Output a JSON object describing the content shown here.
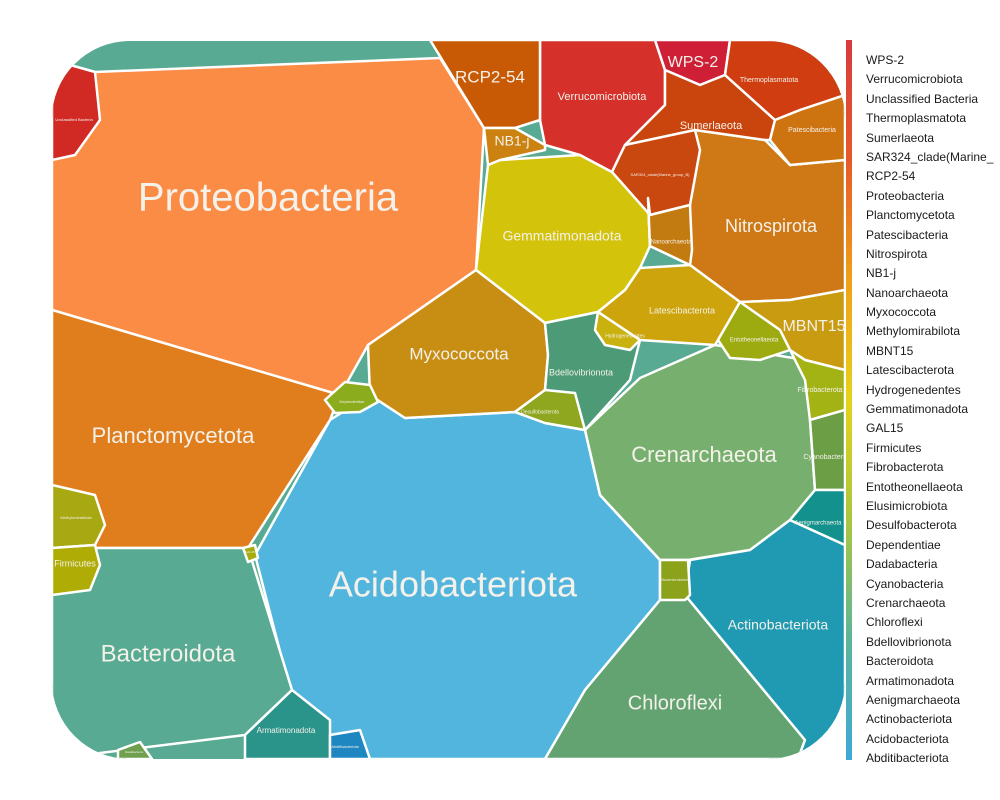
{
  "chart_data": {
    "type": "voronoi-treemap",
    "title": "",
    "cells": [
      {
        "name": "Proteobacteria",
        "color": "#fb8c45"
      },
      {
        "name": "Acidobacteriota",
        "color": "#52b5dd"
      },
      {
        "name": "Planctomycetota",
        "color": "#e07e1e"
      },
      {
        "name": "Bacteroidota",
        "color": "#58aa92"
      },
      {
        "name": "Crenarchaeota",
        "color": "#77b06e"
      },
      {
        "name": "Chloroflexi",
        "color": "#63a371"
      },
      {
        "name": "Actinobacteriota",
        "color": "#1f9ab2"
      },
      {
        "name": "Gemmatimonadota",
        "color": "#d4c30b"
      },
      {
        "name": "Myxococcota",
        "color": "#c88e14"
      },
      {
        "name": "Nitrospirota",
        "color": "#cf7916"
      },
      {
        "name": "Verrucomicrobiota",
        "color": "#d5302a"
      },
      {
        "name": "RCP2-54",
        "color": "#c85a06"
      },
      {
        "name": "WPS-2",
        "color": "#cf1f37"
      },
      {
        "name": "Sumerlaeota",
        "color": "#c9450d"
      },
      {
        "name": "Thermoplasmatota",
        "color": "#cf3d10"
      },
      {
        "name": "Patescibacteria",
        "color": "#cd7411"
      },
      {
        "name": "NB1-j",
        "color": "#cc8211"
      },
      {
        "name": "Bdellovibrionota",
        "color": "#4d9a76"
      },
      {
        "name": "Latescibacterota",
        "color": "#cda40b"
      },
      {
        "name": "MBNT15",
        "color": "#c99b10"
      },
      {
        "name": "Unclassified Bacteria",
        "color": "#d12a25"
      },
      {
        "name": "SAR324_clade(Marine_group_B)",
        "color": "#c94810"
      },
      {
        "name": "Nanoarchaeota",
        "color": "#c27b10"
      },
      {
        "name": "Hydrogenedentes",
        "color": "#c9b10f"
      },
      {
        "name": "Entotheonellaeota",
        "color": "#9eab10"
      },
      {
        "name": "Fibrobacterota",
        "color": "#a3b313"
      },
      {
        "name": "Cyanobacteria",
        "color": "#6c9e46"
      },
      {
        "name": "Aenigmarchaeota",
        "color": "#13928d"
      },
      {
        "name": "Dependentiae",
        "color": "#8bac1c"
      },
      {
        "name": "Desulfobacterota",
        "color": "#8ea71e"
      },
      {
        "name": "Methylomirabilota",
        "color": "#a7a812"
      },
      {
        "name": "Firmicutes",
        "color": "#aeac05"
      },
      {
        "name": "Armatimonadota",
        "color": "#2a938a"
      },
      {
        "name": "Abditibacteriota",
        "color": "#1e87c2"
      },
      {
        "name": "Elusimicrobiota",
        "color": "#8ba21a"
      },
      {
        "name": "GAL15",
        "color": "#a6ad10"
      },
      {
        "name": "Dadabacteria",
        "color": "#6fa04d"
      }
    ],
    "legend": {
      "position": "right",
      "gradient": [
        "#d83a3f",
        "#e55a2a",
        "#f0a018",
        "#e6d21a",
        "#a9c640",
        "#5bb59a",
        "#3fa8d8"
      ],
      "items": [
        "WPS-2",
        "Verrucomicrobiota",
        "Unclassified Bacteria",
        "Thermoplasmatota",
        "Sumerlaeota",
        "SAR324_clade(Marine_",
        "RCP2-54",
        "Proteobacteria",
        "Planctomycetota",
        "Patescibacteria",
        "Nitrospirota",
        "NB1-j",
        "Nanoarchaeota",
        "Myxococcota",
        "Methylomirabilota",
        "MBNT15",
        "Latescibacterota",
        "Hydrogenedentes",
        "Gemmatimonadota",
        "GAL15",
        "Firmicutes",
        "Fibrobacterota",
        "Entotheonellaeota",
        "Elusimicrobiota",
        "Desulfobacterota",
        "Dependentiae",
        "Dadabacteria",
        "Cyanobacteria",
        "Crenarchaeota",
        "Chloroflexi",
        "Bdellovibrionota",
        "Bacteroidota",
        "Armatimonadota",
        "Aenigmarchaeota",
        "Actinobacteriota",
        "Acidobacteriota",
        "Abditibacteriota"
      ]
    }
  }
}
